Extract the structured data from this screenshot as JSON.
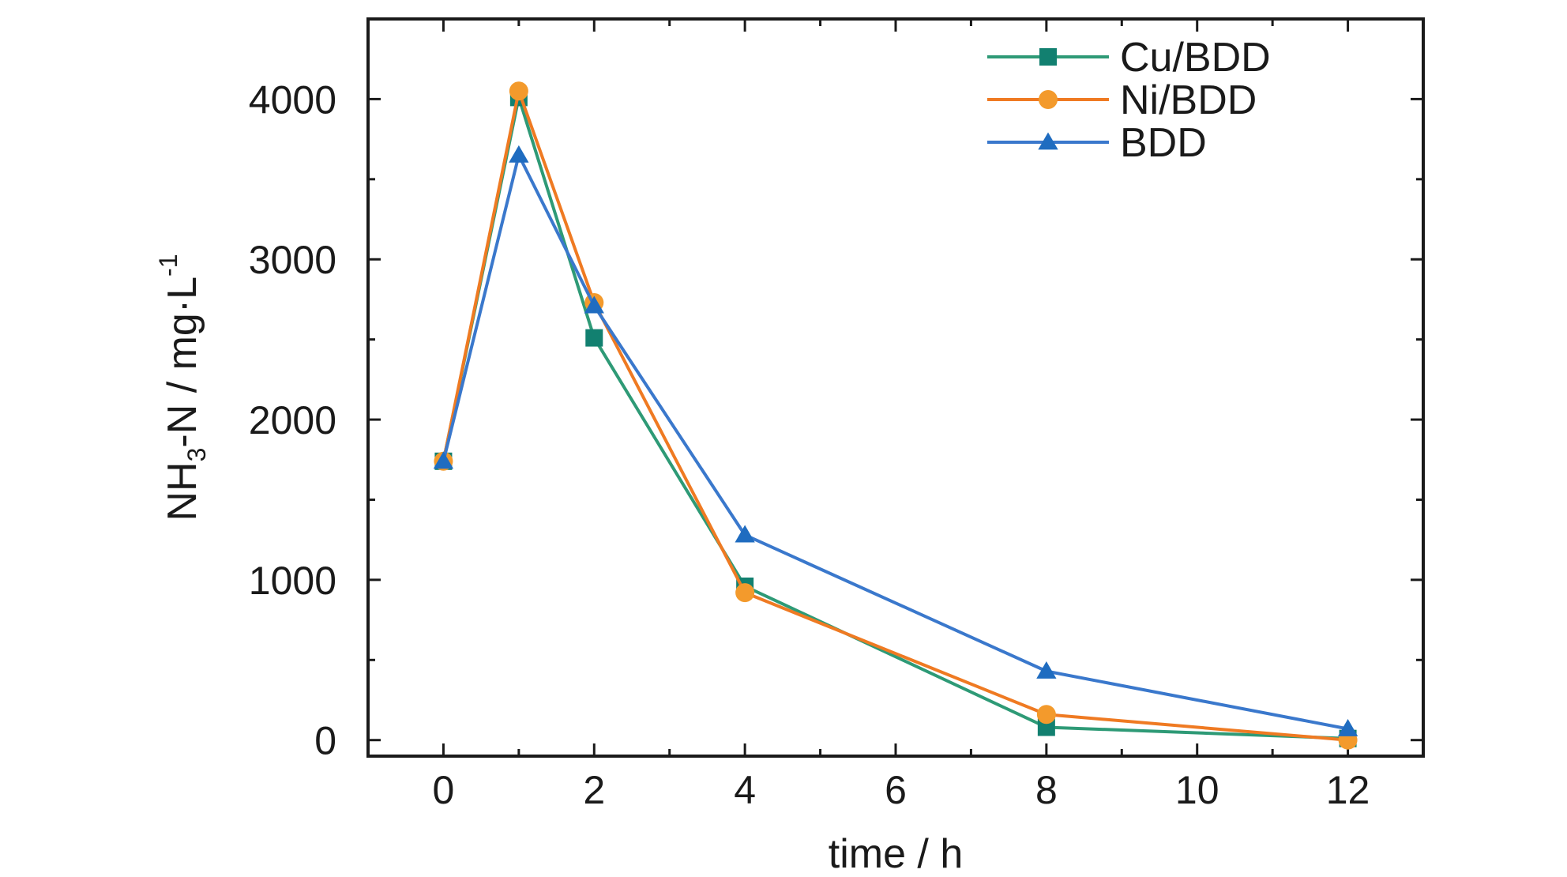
{
  "chart_data": {
    "type": "line",
    "xlabel": "time / h",
    "ylabel": {
      "prefix": "NH",
      "sub": "3",
      "middle": "-N / mg·L",
      "sup": "-1"
    },
    "xlim": [
      -1,
      13
    ],
    "ylim": [
      -100,
      4500
    ],
    "xticks": [
      0,
      2,
      4,
      6,
      8,
      10,
      12
    ],
    "yticks": [
      0,
      1000,
      2000,
      3000,
      4000
    ],
    "grid": false,
    "legend_position": "top-right",
    "series": [
      {
        "name": "Cu/BDD",
        "color": "#2e9a76",
        "marker_color": "#128070",
        "marker": "square",
        "x": [
          0,
          1,
          2,
          4,
          8,
          12
        ],
        "y": [
          1740,
          4010,
          2510,
          960,
          80,
          10
        ]
      },
      {
        "name": "Ni/BDD",
        "color": "#ef7a22",
        "marker_color": "#f39a2c",
        "marker": "circle",
        "x": [
          0,
          1,
          2,
          4,
          8,
          12
        ],
        "y": [
          1740,
          4050,
          2730,
          920,
          160,
          0
        ]
      },
      {
        "name": "BDD",
        "color": "#3a78cc",
        "marker_color": "#1f6cc0",
        "marker": "triangle",
        "x": [
          0,
          1,
          2,
          4,
          8,
          12
        ],
        "y": [
          1740,
          3650,
          2710,
          1280,
          430,
          70
        ]
      }
    ]
  }
}
